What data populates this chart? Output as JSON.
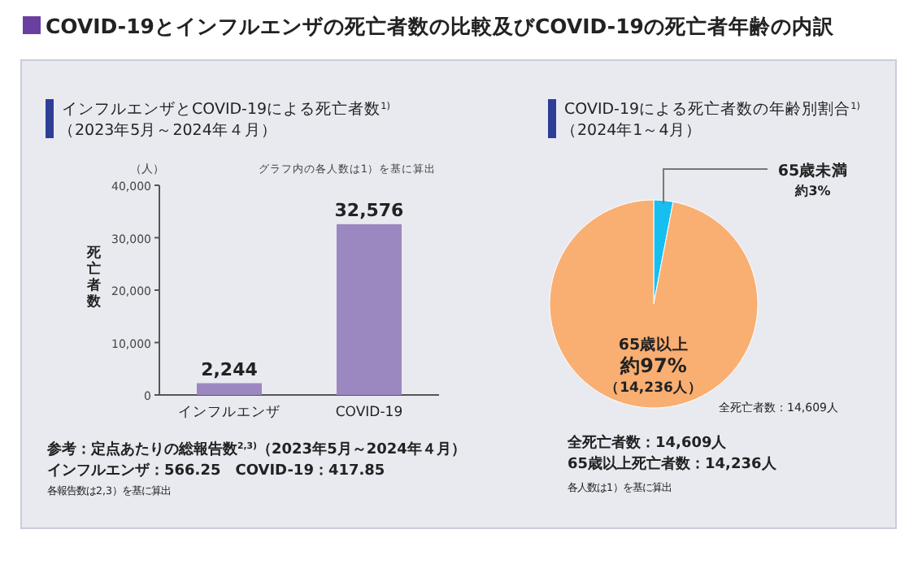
{
  "chart_data": [
    {
      "type": "bar",
      "title": "インフルエンザとCOVID-19による死亡者数$^{1)}$",
      "subtitle": "（2023年5月～2024年４月）",
      "ylabel": "死亡者数",
      "categories": [
        "インフルエンザ",
        "COVID-19"
      ],
      "values": [
        2244,
        32576
      ],
      "color": "#9b88c1",
      "ylim": [
        0,
        40000
      ],
      "yticks": [
        {
          "value": 0,
          "label": "0"
        },
        {
          "value": 10000,
          "label": "10,000"
        },
        {
          "value": 20000,
          "label": "20,000"
        },
        {
          "value": 30000,
          "label": "30,000"
        },
        {
          "value": 40000,
          "label": "40,000"
        }
      ],
      "value_labels": [
        "2,244",
        "32,576"
      ],
      "annotations": [
        "COVID-19とインフルエンザの死亡者数の比較及びCOVID-19の死亡者年齢の内訳",
        "（人）",
        "グラフ内の各人数は1）を基に算出",
        "参考：定点あたりの総報告数$^{2,3)}$（2023年5月～2024年４月）",
        "インフルエンザ：566.25　COVID-19：417.85",
        "各報告数は2,3）を基に算出"
      ]
    },
    {
      "type": "pie",
      "title": "COVID-19による死亡者数の年齢別割合$^{1)}$",
      "subtitle": "（2024年1～4月）",
      "categories": [
        "65歳未満",
        "65歳以上"
      ],
      "values": [
        3,
        97
      ],
      "colors": [
        "#17bff0",
        "#f9ae72"
      ],
      "value_labels": [
        "約3%",
        "約97%"
      ],
      "annotations": [
        "（14,236人）",
        "全死亡者数：14,609人",
        "全死亡者数：14,609人",
        "65歳以上死亡者数：14,236人",
        "各人数は1）を基に算出"
      ]
    }
  ]
}
